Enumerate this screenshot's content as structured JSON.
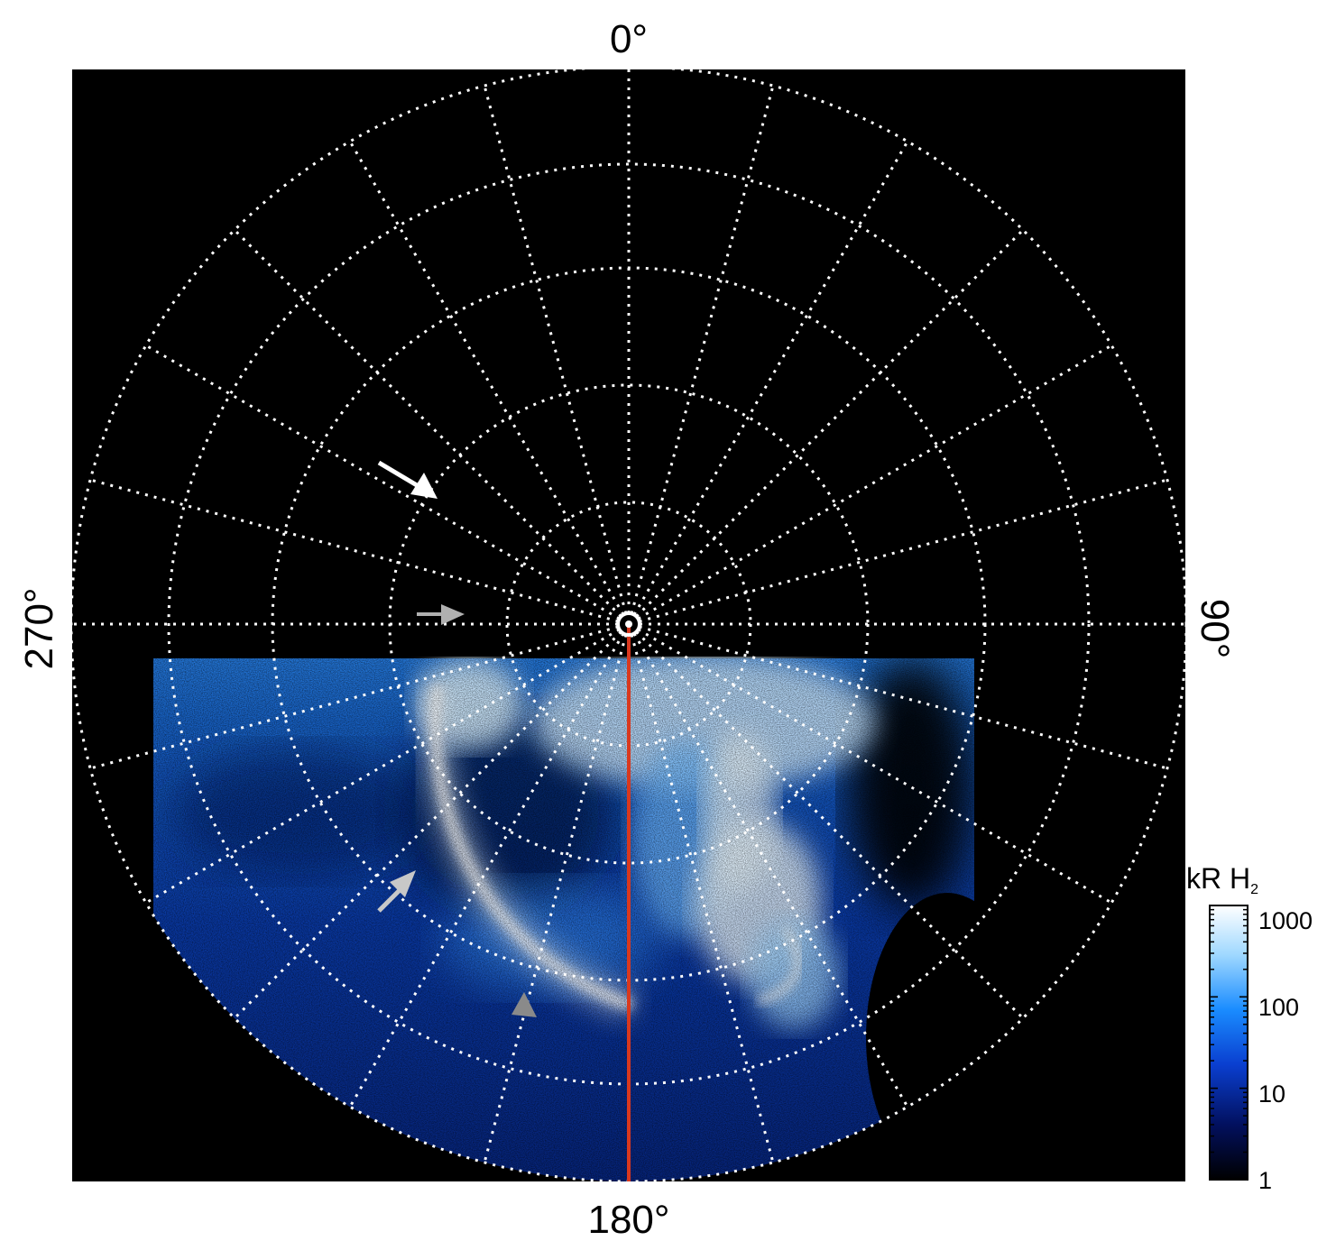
{
  "map": {
    "lon_top": "0°",
    "lon_bottom": "180°",
    "lon_left": "270°",
    "lon_right": "90°"
  },
  "colorbar": {
    "title_main": "kR H",
    "title_sub": "2",
    "ticks": [
      "1000",
      "100",
      "10",
      "1"
    ],
    "colors": [
      "#ffffff",
      "#9fd8ff",
      "#1a8cff",
      "#0a3fd0",
      "#02105e",
      "#000000"
    ]
  },
  "colors": {
    "background": "#000000",
    "grid": "#ffffff",
    "meridian_line": "#d9381e",
    "arrow_primary": "#ffffff",
    "arrow_secondary": "#b0b0b0"
  }
}
